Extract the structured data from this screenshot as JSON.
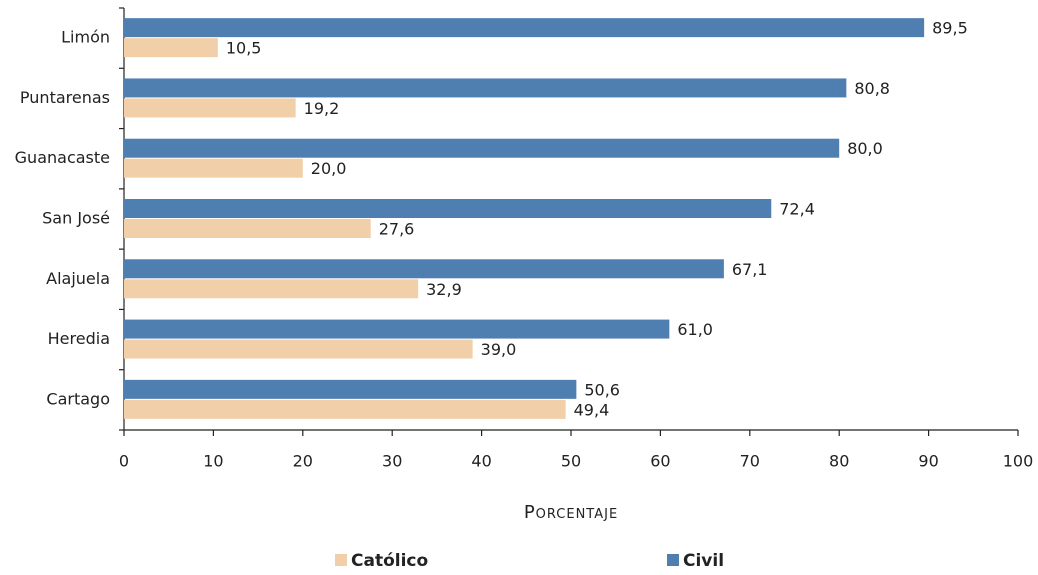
{
  "chart_data": {
    "type": "barh",
    "xlabel": "Porcentaje",
    "categories": [
      "Limón",
      "Puntarenas",
      "Guanacaste",
      "San José",
      "Alajuela",
      "Heredia",
      "Cartago"
    ],
    "series": [
      {
        "name": "Católico",
        "color": "#f1d0a9",
        "values": [
          10.5,
          19.2,
          20.0,
          27.6,
          32.9,
          39.0,
          49.4
        ],
        "value_labels": [
          "10,5",
          "19,2",
          "20,0",
          "27,6",
          "32,9",
          "39,0",
          "49,4"
        ]
      },
      {
        "name": "Civil",
        "color": "#4f7fb0",
        "values": [
          89.5,
          80.8,
          80.0,
          72.4,
          67.1,
          61.0,
          50.6
        ],
        "value_labels": [
          "89,5",
          "80,8",
          "80,0",
          "72,4",
          "67,1",
          "61,0",
          "50,6"
        ]
      }
    ],
    "xlim": [
      0,
      100
    ],
    "xticks": [
      0,
      10,
      20,
      30,
      40,
      50,
      60,
      70,
      80,
      90,
      100
    ],
    "legend": "bottom"
  }
}
